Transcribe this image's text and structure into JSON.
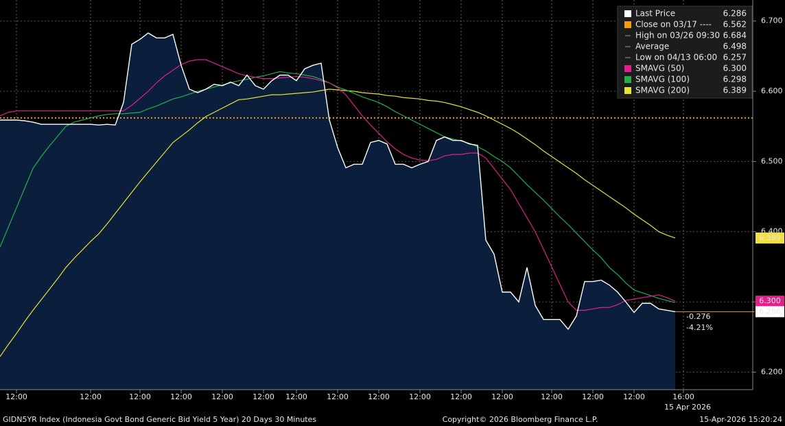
{
  "chart_data": {
    "type": "line",
    "categories": [
      null,
      null,
      "12:00",
      null,
      null,
      null,
      null,
      null,
      null,
      null,
      null,
      "12:00",
      null,
      null,
      null,
      null,
      null,
      "12:00",
      null,
      null,
      null,
      null,
      "12:00",
      null,
      null,
      null,
      null,
      "12:00",
      null,
      null,
      null,
      null,
      "12:00",
      null,
      null,
      null,
      "12:00",
      null,
      null,
      null,
      null,
      "12:00",
      null,
      null,
      null,
      null,
      "12:00",
      null,
      null,
      null,
      null,
      "12:00",
      null,
      null,
      null,
      null,
      "12:00",
      null,
      null,
      null,
      null,
      "12:00",
      null,
      null,
      null,
      null,
      null,
      "12:00",
      null,
      null,
      null,
      null,
      "12:00",
      null,
      null,
      null,
      null,
      "12:00",
      null,
      null,
      null,
      null,
      null,
      "16:00"
    ],
    "date_label": "15 Apr 2026",
    "series": [
      {
        "color": "#ffffff",
        "fill": "#0b1f3d",
        "values": [
          6.559,
          6.559,
          6.559,
          6.558,
          6.556,
          6.553,
          6.553,
          6.553,
          6.553,
          6.553,
          6.553,
          6.553,
          6.552,
          6.553,
          6.552,
          6.584,
          6.667,
          6.674,
          6.683,
          6.676,
          6.676,
          6.681,
          6.637,
          6.603,
          6.598,
          6.603,
          6.61,
          6.608,
          6.613,
          6.608,
          6.623,
          6.608,
          6.603,
          6.615,
          6.623,
          6.623,
          6.615,
          6.632,
          6.637,
          6.64,
          6.559,
          6.52,
          6.491,
          6.496,
          6.496,
          6.527,
          6.53,
          6.525,
          6.496,
          6.496,
          6.491,
          6.496,
          6.5,
          6.53,
          6.535,
          6.53,
          6.53,
          6.525,
          6.523,
          6.388,
          6.368,
          6.314,
          6.314,
          6.3,
          6.349,
          6.295,
          6.275,
          6.275,
          6.275,
          6.261,
          6.28,
          6.329,
          6.329,
          6.331,
          6.324,
          6.314,
          6.3,
          6.285,
          6.298,
          6.298,
          6.29,
          6.288,
          6.286,
          null
        ]
      },
      {
        "color": "#e0208c",
        "values": [
          6.565,
          6.57,
          6.572,
          6.572,
          6.572,
          6.572,
          6.572,
          6.572,
          6.572,
          6.572,
          6.572,
          6.572,
          6.572,
          6.572,
          6.572,
          6.572,
          6.58,
          6.59,
          6.6,
          6.612,
          6.622,
          6.63,
          6.638,
          6.643,
          6.645,
          6.645,
          6.64,
          6.635,
          6.63,
          6.625,
          6.622,
          6.62,
          6.618,
          6.618,
          6.619,
          6.62,
          6.621,
          6.62,
          6.618,
          6.615,
          6.612,
          6.605,
          6.595,
          6.58,
          6.565,
          6.552,
          6.54,
          6.528,
          6.518,
          6.51,
          6.505,
          6.502,
          6.501,
          6.503,
          6.508,
          6.51,
          6.51,
          6.512,
          6.512,
          6.505,
          6.49,
          6.475,
          6.46,
          6.44,
          6.42,
          6.4,
          6.375,
          6.35,
          6.325,
          6.3,
          6.288,
          6.288,
          6.29,
          6.292,
          6.292,
          6.296,
          6.302,
          6.304,
          6.306,
          6.308,
          6.31,
          6.306,
          6.301,
          null
        ]
      },
      {
        "color": "#22b04a",
        "values": [
          6.378,
          6.406,
          6.434,
          6.462,
          6.49,
          6.507,
          6.522,
          6.536,
          6.55,
          6.556,
          6.559,
          6.562,
          6.565,
          6.567,
          6.568,
          6.568,
          6.569,
          6.57,
          6.575,
          6.579,
          6.584,
          6.589,
          6.592,
          6.596,
          6.6,
          6.603,
          6.606,
          6.609,
          6.612,
          6.615,
          6.617,
          6.62,
          6.622,
          6.625,
          6.628,
          6.626,
          6.625,
          6.623,
          6.621,
          6.617,
          6.612,
          6.606,
          6.602,
          6.597,
          6.592,
          6.588,
          6.584,
          6.578,
          6.571,
          6.565,
          6.559,
          6.553,
          6.547,
          6.541,
          6.535,
          6.532,
          6.529,
          6.526,
          6.521,
          6.515,
          6.507,
          6.5,
          6.491,
          6.479,
          6.467,
          6.456,
          6.445,
          6.433,
          6.421,
          6.41,
          6.398,
          6.386,
          6.374,
          6.363,
          6.349,
          6.339,
          6.327,
          6.317,
          6.313,
          6.309,
          6.305,
          6.302,
          6.299,
          null
        ]
      },
      {
        "color": "#e8e23a",
        "values": [
          6.222,
          6.239,
          6.255,
          6.272,
          6.288,
          6.303,
          6.318,
          6.333,
          6.349,
          6.362,
          6.374,
          6.386,
          6.397,
          6.411,
          6.426,
          6.441,
          6.456,
          6.471,
          6.485,
          6.499,
          6.513,
          6.527,
          6.536,
          6.545,
          6.555,
          6.564,
          6.57,
          6.576,
          6.582,
          6.588,
          6.589,
          6.591,
          6.593,
          6.595,
          6.595,
          6.596,
          6.597,
          6.598,
          6.599,
          6.601,
          6.603,
          6.602,
          6.601,
          6.6,
          6.598,
          6.597,
          6.596,
          6.594,
          6.593,
          6.591,
          6.59,
          6.589,
          6.587,
          6.586,
          6.584,
          6.581,
          6.578,
          6.574,
          6.57,
          6.565,
          6.559,
          6.553,
          6.547,
          6.54,
          6.532,
          6.524,
          6.515,
          6.507,
          6.499,
          6.491,
          6.483,
          6.474,
          6.466,
          6.458,
          6.45,
          6.442,
          6.434,
          6.425,
          6.417,
          6.409,
          6.4,
          6.395,
          6.391,
          null
        ]
      }
    ],
    "ylim": [
      6.175,
      6.73
    ],
    "yticks": [
      {
        "value": 6.2,
        "label": "6.200"
      },
      {
        "value": 6.3,
        "label": "6.300"
      },
      {
        "value": 6.4,
        "label": "6.400"
      },
      {
        "value": 6.5,
        "label": "6.500"
      },
      {
        "value": 6.6,
        "label": "6.600"
      },
      {
        "value": 6.7,
        "label": "6.700"
      }
    ],
    "grid": true,
    "reference_line": {
      "value": 6.562,
      "color": "#f39c12"
    },
    "legend": [
      {
        "label": "Last Price",
        "value": "6.286",
        "color": "#ffffff"
      },
      {
        "label": "Close on 03/17 ----",
        "value": "6.562",
        "color": "#f39c12"
      },
      {
        "label": "High on 03/26 09:30",
        "value": "6.684"
      },
      {
        "label": "Average",
        "value": "6.498"
      },
      {
        "label": "Low on 04/13 06:00",
        "value": "6.257"
      },
      {
        "label": "SMAVG (50)",
        "value": "6.300",
        "color": "#e0208c"
      },
      {
        "label": "SMAVG (100)",
        "value": "6.298",
        "color": "#22b04a"
      },
      {
        "label": "SMAVG (200)",
        "value": "6.389",
        "color": "#e8e23a"
      }
    ],
    "badges": [
      {
        "text": "6.389",
        "color": "#f5e03a",
        "text_color": "#000000",
        "series": 3
      },
      {
        "text": "6.300",
        "color": "#e0208c",
        "text_color": "#ffffff",
        "series": 1
      },
      {
        "text": "6.286",
        "color": "#ffffff",
        "text_color": "#000000",
        "series": 0
      }
    ],
    "change": [
      "-0.276",
      "-4.21%"
    ],
    "footer": {
      "left": "GIDN5YR Index (Indonesia Govt Bond Generic Bid Yield 5 Year) 20 Days 30 Minutes",
      "center": "Copyright© 2026 Bloomberg Finance L.P.",
      "right": "15-Apr-2026 15:20:24"
    }
  }
}
